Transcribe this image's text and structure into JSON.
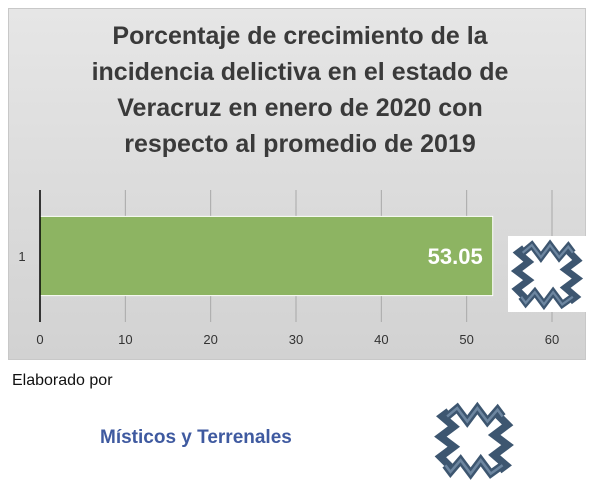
{
  "chart_data": {
    "type": "bar",
    "orientation": "horizontal",
    "title": "Porcentaje de crecimiento de la incidencia delictiva en el estado de Veracruz en enero de 2020 con respecto al promedio de 2019",
    "title_lines": [
      "Porcentaje de crecimiento de la",
      "incidencia delictiva en el estado de",
      "Veracruz en enero de 2020 con",
      "respecto al promedio de 2019"
    ],
    "categories": [
      "1"
    ],
    "values": [
      53.05
    ],
    "data_labels": [
      "53.05"
    ],
    "xlim": [
      0,
      60
    ],
    "x_ticks": [
      0,
      10,
      20,
      30,
      40,
      50,
      60
    ],
    "grid": "vertical",
    "bar_color": "#8db462",
    "legend": "none"
  },
  "footer": {
    "credit_label": "Elaborado por",
    "brand_name": "Místicos y Terrenales",
    "logo_icon": "misticos-terrenales-logo-icon",
    "logo_color": "#3d5670"
  }
}
